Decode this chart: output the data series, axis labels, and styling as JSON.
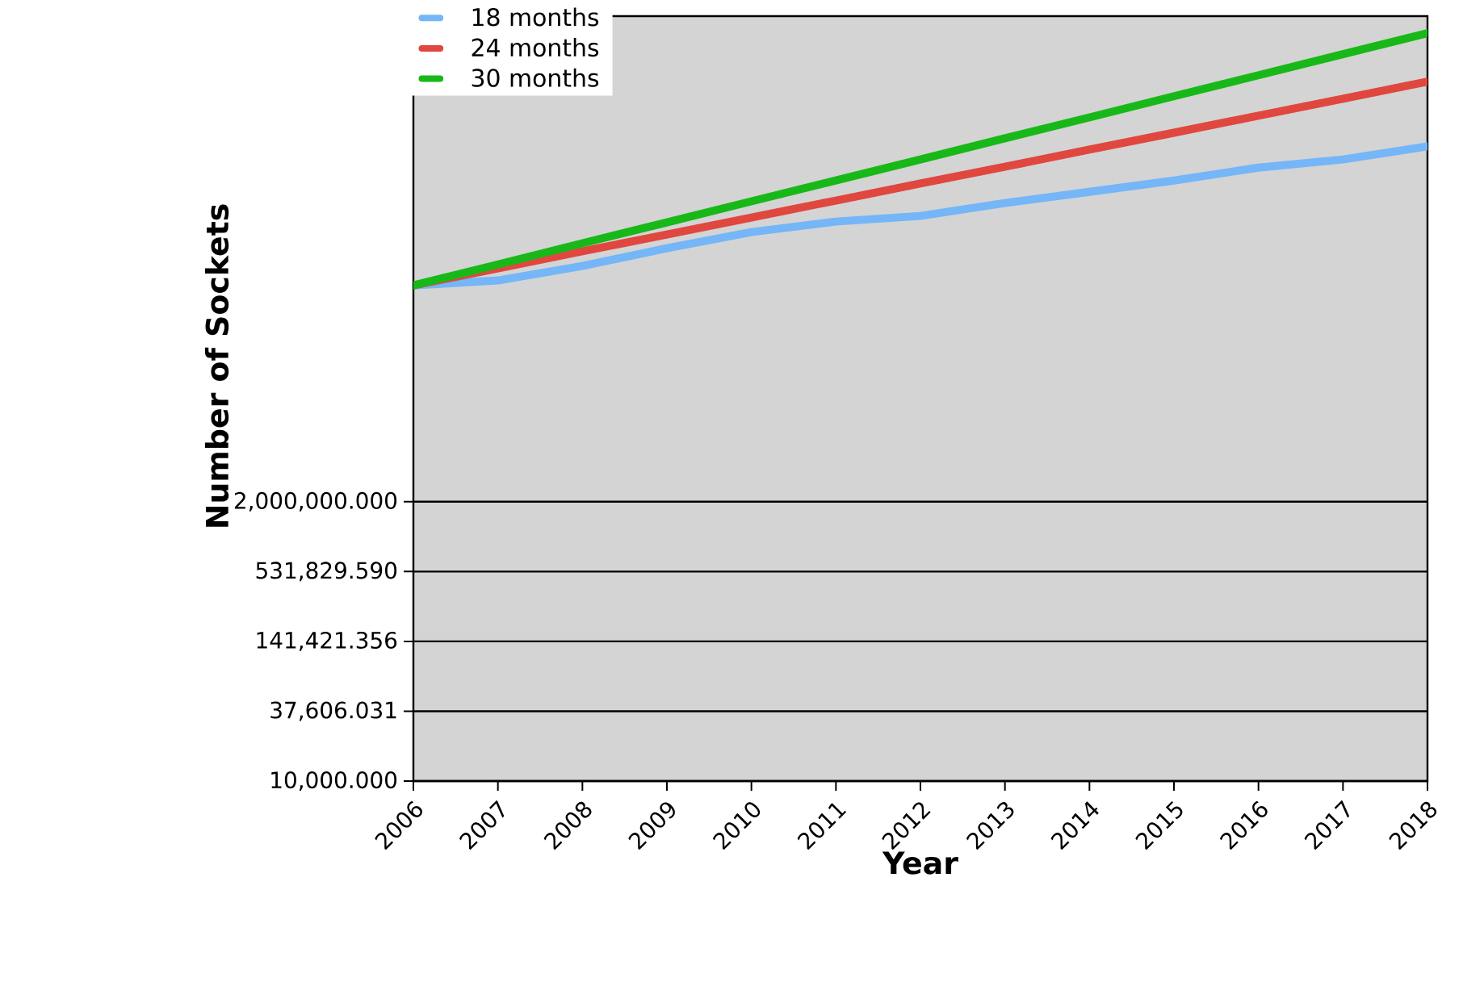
{
  "chart_data": {
    "type": "line",
    "xlabel": "Year",
    "ylabel": "Number of Sockets",
    "categories": [
      "2006",
      "2007",
      "2008",
      "2009",
      "2010",
      "2011",
      "2012",
      "2013",
      "2014",
      "2015",
      "2016",
      "2017",
      "2018"
    ],
    "series": [
      {
        "name": "18 months",
        "color": "#74b6f8",
        "values": [
          121000000.0,
          133000000.0,
          175000000.0,
          245000000.0,
          333000000.0,
          406000000.0,
          452000000.0,
          577000000.0,
          714000000.0,
          885000000.0,
          1130000000.0,
          1320000000.0,
          1690000000.0
        ]
      },
      {
        "name": "24 months",
        "color": "#e0473f",
        "values": [
          121000000.0,
          167000000.0,
          231000000.0,
          318000000.0,
          439000000.0,
          605000000.0,
          836000000.0,
          1150000000.0,
          1590000000.0,
          2190000000.0,
          3030000000.0,
          4180000000.0,
          5770000000.0
        ]
      },
      {
        "name": "30 months",
        "color": "#18b818",
        "values": [
          121000000.0,
          180000000.0,
          269000000.0,
          400000000.0,
          596000000.0,
          887000000.0,
          1320000000.0,
          1970000000.0,
          2930000000.0,
          4380000000.0,
          6520000000.0,
          9710000000.0,
          14500000000.0
        ]
      }
    ],
    "log": "y",
    "ylim": [
      10000,
      20000000000.0
    ],
    "yticks": [
      {
        "value": 10000,
        "label": "10,000.000"
      },
      {
        "value": 37606.031,
        "label": "37,606.031"
      },
      {
        "value": 141421.356,
        "label": "141,421.356"
      },
      {
        "value": 531829.59,
        "label": "531,829.590"
      },
      {
        "value": 2000000,
        "label": "2,000,000.000"
      }
    ],
    "grid": "y",
    "legend": "top left",
    "marker": "none",
    "line_style": "solid"
  }
}
